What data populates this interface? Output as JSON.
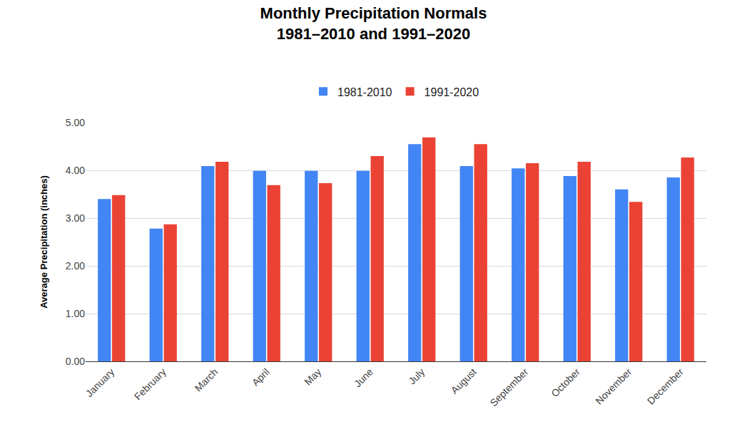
{
  "chart_data": {
    "type": "bar",
    "title": "Monthly Precipitation Normals\n1981–2010 and 1991–2020",
    "y_label": "Average Precipitation (inches)",
    "categories": [
      "January",
      "February",
      "March",
      "April",
      "May",
      "June",
      "July",
      "August",
      "September",
      "October",
      "November",
      "December"
    ],
    "series": [
      {
        "name": "1981-2010",
        "color": "#4285f4",
        "values": [
          3.4,
          2.78,
          4.09,
          3.99,
          3.99,
          3.99,
          4.55,
          4.09,
          4.04,
          3.88,
          3.6,
          3.85
        ]
      },
      {
        "name": "1991-2020",
        "color": "#ea4335",
        "values": [
          3.48,
          2.87,
          4.18,
          3.69,
          3.73,
          4.3,
          4.69,
          4.55,
          4.15,
          4.18,
          3.34,
          4.27
        ]
      }
    ],
    "ylim": [
      0,
      5
    ],
    "yticks": [
      {
        "value": 0,
        "label": "0.00"
      },
      {
        "value": 1,
        "label": "1.00"
      },
      {
        "value": 2,
        "label": "2.00"
      },
      {
        "value": 3,
        "label": "3.00"
      },
      {
        "value": 4,
        "label": "4.00"
      },
      {
        "value": 5,
        "label": "5.00"
      }
    ],
    "grid": true,
    "legend": "top"
  }
}
